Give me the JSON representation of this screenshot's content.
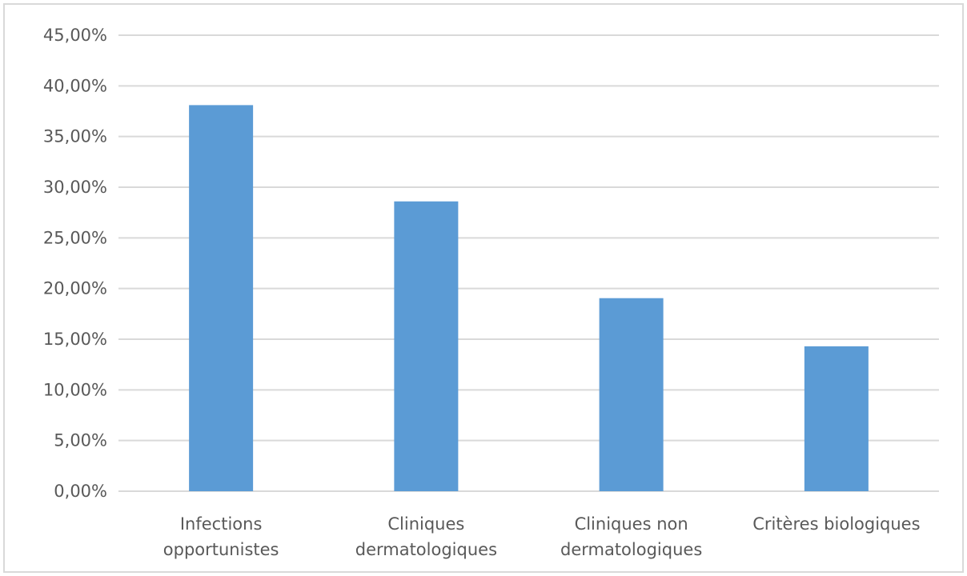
{
  "chart_data": {
    "type": "bar",
    "categories": [
      [
        "Infections",
        "opportunistes"
      ],
      [
        "Cliniques",
        "dermatologiques"
      ],
      [
        "Cliniques non",
        "dermatologiques"
      ],
      [
        "Critères biologiques"
      ]
    ],
    "values": [
      38.1,
      28.6,
      19.05,
      14.3
    ],
    "ylim": [
      0,
      45
    ],
    "yticks": [
      0,
      5,
      10,
      15,
      20,
      25,
      30,
      35,
      40,
      45
    ],
    "ytick_labels": [
      "0,00%",
      "5,00%",
      "10,00%",
      "15,00%",
      "20,00%",
      "25,00%",
      "30,00%",
      "35,00%",
      "40,00%",
      "45,00%"
    ],
    "grid": true,
    "legend": "none",
    "colors": {
      "bar": "#5b9bd5",
      "grid": "#d9d9d9",
      "text": "#595959",
      "border": "#d9d9d9"
    }
  }
}
